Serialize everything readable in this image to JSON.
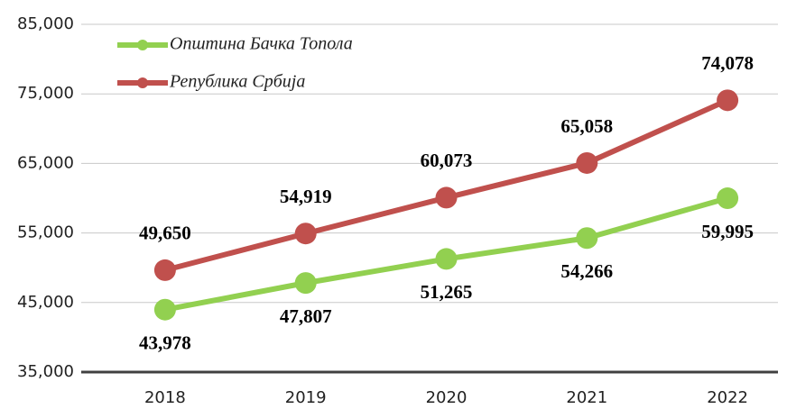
{
  "chart_data": {
    "type": "line",
    "categories": [
      "2018",
      "2019",
      "2020",
      "2021",
      "2022"
    ],
    "series": [
      {
        "name": "Општина Бачка Топола",
        "color": "#92d050",
        "values": [
          43978,
          47807,
          51265,
          54266,
          59995
        ],
        "value_labels": [
          "43,978",
          "47,807",
          "51,265",
          "54,266",
          "59,995"
        ]
      },
      {
        "name": "Република Србија",
        "color": "#c0504d",
        "values": [
          49650,
          54919,
          60073,
          65058,
          74078
        ],
        "value_labels": [
          "49,650",
          "54,919",
          "60,073",
          "65,058",
          "74,078"
        ]
      }
    ],
    "ylim": [
      35000,
      85000
    ],
    "yticks": [
      {
        "value": 35000,
        "label": "35,000"
      },
      {
        "value": 45000,
        "label": "45,000"
      },
      {
        "value": 55000,
        "label": "55,000"
      },
      {
        "value": 65000,
        "label": "65,000"
      },
      {
        "value": 75000,
        "label": "75,000"
      },
      {
        "value": 85000,
        "label": "85,000"
      }
    ],
    "grid": true,
    "legend": "upper left"
  }
}
